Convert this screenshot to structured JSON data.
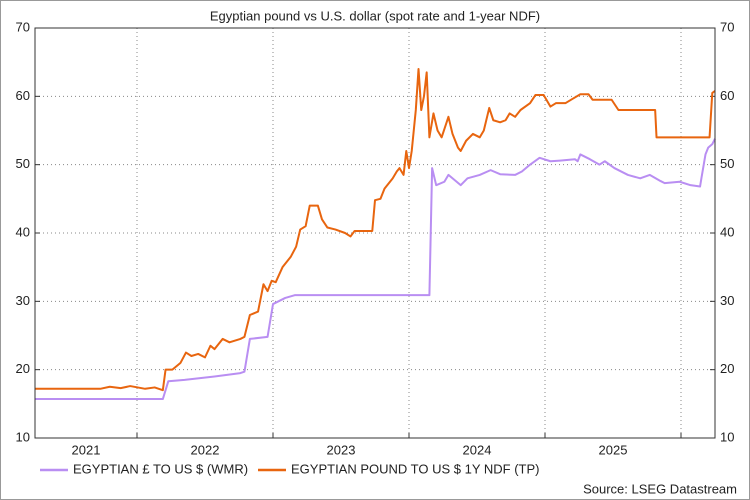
{
  "chart_data": {
    "type": "line",
    "title": "Egyptian pound vs U.S. dollar (spot rate and 1-year NDF)",
    "source": "Source: LSEG Datastream",
    "xlim": [
      2021.25,
      2026.25
    ],
    "xticks": [
      2021,
      2022,
      2023,
      2024,
      2025
    ],
    "xgrid": [
      2022,
      2023,
      2024,
      2025,
      2026
    ],
    "ylim": [
      10,
      70
    ],
    "yticks": [
      10,
      20,
      30,
      40,
      50,
      60,
      70
    ],
    "grid": true,
    "legend": "bottom",
    "series": [
      {
        "name": "EGYPTIAN £ TO US $ (WMR)",
        "color": "#b98ef2",
        "x": [
          2021.25,
          2022.19,
          2022.23,
          2022.35,
          2022.57,
          2022.76,
          2022.79,
          2022.83,
          2022.96,
          2023.0,
          2023.09,
          2023.16,
          2024.15,
          2024.17,
          2024.2,
          2024.26,
          2024.29,
          2024.38,
          2024.43,
          2024.52,
          2024.6,
          2024.67,
          2024.78,
          2024.83,
          2024.89,
          2024.96,
          2025.04,
          2025.11,
          2025.22,
          2025.24,
          2025.26,
          2025.33,
          2025.4,
          2025.44,
          2025.51,
          2025.61,
          2025.7,
          2025.77,
          2025.85,
          2025.88,
          2025.99,
          2026.07,
          2026.14,
          2026.15,
          2026.18,
          2026.2,
          2026.23,
          2026.25
        ],
        "values": [
          15.7,
          15.7,
          18.3,
          18.5,
          19,
          19.5,
          19.7,
          24.5,
          24.8,
          29.6,
          30.5,
          30.9,
          30.9,
          49.5,
          47,
          47.5,
          48.5,
          47,
          48,
          48.5,
          49.2,
          48.6,
          48.5,
          49,
          50,
          51,
          50.5,
          50.6,
          50.8,
          50.5,
          51.5,
          50.8,
          50,
          50.5,
          49.5,
          48.5,
          48,
          48.5,
          47.6,
          47.3,
          47.5,
          47,
          46.8,
          48,
          51.5,
          52.5,
          53,
          53.8
        ]
      },
      {
        "name": "EGYPTIAN POUND TO US $ 1Y NDF (TP)",
        "color": "#e8650f",
        "x": [
          2021.25,
          2021.73,
          2021.8,
          2021.88,
          2021.95,
          2022.06,
          2022.13,
          2022.19,
          2022.21,
          2022.26,
          2022.32,
          2022.36,
          2022.4,
          2022.45,
          2022.5,
          2022.54,
          2022.57,
          2022.63,
          2022.68,
          2022.76,
          2022.79,
          2022.83,
          2022.89,
          2022.93,
          2022.96,
          2022.99,
          2023.02,
          2023.07,
          2023.13,
          2023.17,
          2023.2,
          2023.24,
          2023.27,
          2023.33,
          2023.36,
          2023.4,
          2023.46,
          2023.53,
          2023.57,
          2023.6,
          2023.73,
          2023.75,
          2023.79,
          2023.82,
          2023.88,
          2023.91,
          2023.93,
          2023.96,
          2023.98,
          2024.0,
          2024.02,
          2024.05,
          2024.07,
          2024.09,
          2024.11,
          2024.13,
          2024.15,
          2024.18,
          2024.21,
          2024.24,
          2024.29,
          2024.32,
          2024.36,
          2024.38,
          2024.42,
          2024.47,
          2024.52,
          2024.55,
          2024.59,
          2024.62,
          2024.67,
          2024.71,
          2024.74,
          2024.78,
          2024.82,
          2024.89,
          2024.93,
          2024.99,
          2025.04,
          2025.08,
          2025.15,
          2025.2,
          2025.26,
          2025.32,
          2025.35,
          2025.49,
          2025.54,
          2025.81,
          2025.82,
          2026.21,
          2026.23,
          2026.25
        ],
        "values": [
          17.2,
          17.2,
          17.5,
          17.3,
          17.6,
          17.2,
          17.4,
          17,
          20,
          20,
          21,
          22.5,
          22,
          22.3,
          21.8,
          23.5,
          23,
          24.5,
          24,
          24.5,
          24.8,
          28,
          28.5,
          32.5,
          31.5,
          33,
          32.8,
          35,
          36.5,
          38,
          40.5,
          41,
          44,
          44,
          42,
          40.8,
          40.5,
          40,
          39.5,
          40.3,
          40.3,
          44.8,
          45,
          46.5,
          48,
          49,
          49.5,
          48.5,
          52,
          49.5,
          52,
          58,
          64,
          58,
          60,
          63.5,
          54,
          57.5,
          55,
          54,
          57,
          54.5,
          52.5,
          52,
          53.5,
          54.5,
          54,
          55,
          58.3,
          56.5,
          56.2,
          56.5,
          57.5,
          57,
          58,
          59,
          60.2,
          60.2,
          58.5,
          59,
          59,
          59.6,
          60.3,
          60.3,
          59.5,
          59.5,
          58,
          58,
          54,
          54,
          60.5,
          60.8
        ]
      }
    ]
  }
}
